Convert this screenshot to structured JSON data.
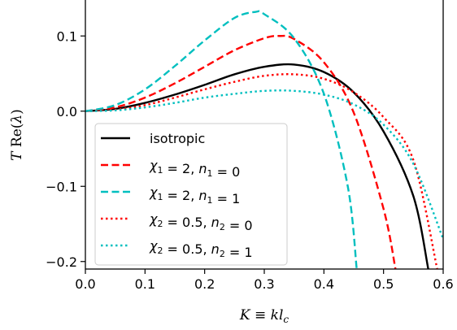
{
  "chart_data": {
    "type": "line",
    "xlabel": "K ≡ kl_c",
    "ylabel": "T Re(λ)",
    "xlim": [
      0.0,
      0.6
    ],
    "ylim": [
      -0.21,
      0.15
    ],
    "xticks": [
      0.0,
      0.1,
      0.2,
      0.3,
      0.4,
      0.5,
      0.6
    ],
    "xtick_labels": [
      "0.0",
      "0.1",
      "0.2",
      "0.3",
      "0.4",
      "0.5",
      "0.6"
    ],
    "yticks": [
      -0.2,
      -0.1,
      0.0,
      0.1
    ],
    "ytick_labels": [
      "−0.2",
      "−0.1",
      "0.0",
      "0.1"
    ],
    "legend_position": "lower-left",
    "series": [
      {
        "name": "isotropic",
        "color": "#000000",
        "style": "solid",
        "x": [
          0.0,
          0.05,
          0.1,
          0.15,
          0.2,
          0.25,
          0.3,
          0.35,
          0.4,
          0.45,
          0.5,
          0.55,
          0.575
        ],
        "y": [
          0.0,
          0.003,
          0.011,
          0.022,
          0.035,
          0.049,
          0.059,
          0.062,
          0.052,
          0.025,
          -0.027,
          -0.113,
          -0.21
        ]
      },
      {
        "name": "χ1 = 2, n1 = 0",
        "color": "#ff0000",
        "style": "dashed",
        "x": [
          0.0,
          0.05,
          0.1,
          0.15,
          0.2,
          0.25,
          0.3,
          0.325,
          0.35,
          0.4,
          0.45,
          0.5,
          0.52
        ],
        "y": [
          0.0,
          0.005,
          0.018,
          0.037,
          0.059,
          0.081,
          0.097,
          0.1,
          0.096,
          0.065,
          -0.002,
          -0.13,
          -0.21
        ]
      },
      {
        "name": "χ1 = 2, n1 = 1",
        "color": "#00bfbf",
        "style": "dashed",
        "x": [
          0.0,
          0.05,
          0.1,
          0.15,
          0.2,
          0.25,
          0.285,
          0.3,
          0.35,
          0.4,
          0.44,
          0.455
        ],
        "y": [
          0.0,
          0.008,
          0.029,
          0.06,
          0.094,
          0.124,
          0.132,
          0.129,
          0.097,
          0.023,
          -0.1,
          -0.21
        ]
      },
      {
        "name": "χ2 = 0.5, n2 = 0",
        "color": "#ff0000",
        "style": "dotted",
        "x": [
          0.0,
          0.05,
          0.1,
          0.15,
          0.2,
          0.25,
          0.3,
          0.35,
          0.4,
          0.45,
          0.5,
          0.55,
          0.59
        ],
        "y": [
          0.0,
          0.002,
          0.008,
          0.018,
          0.029,
          0.039,
          0.047,
          0.049,
          0.043,
          0.025,
          -0.008,
          -0.065,
          -0.21
        ]
      },
      {
        "name": "χ2 = 0.5, n2 = 1",
        "color": "#00bfbf",
        "style": "dotted",
        "x": [
          0.0,
          0.05,
          0.1,
          0.15,
          0.2,
          0.25,
          0.3,
          0.35,
          0.4,
          0.45,
          0.5,
          0.55,
          0.6
        ],
        "y": [
          0.0,
          0.001,
          0.005,
          0.011,
          0.018,
          0.023,
          0.027,
          0.027,
          0.022,
          0.009,
          -0.018,
          -0.07,
          -0.17
        ]
      }
    ]
  }
}
